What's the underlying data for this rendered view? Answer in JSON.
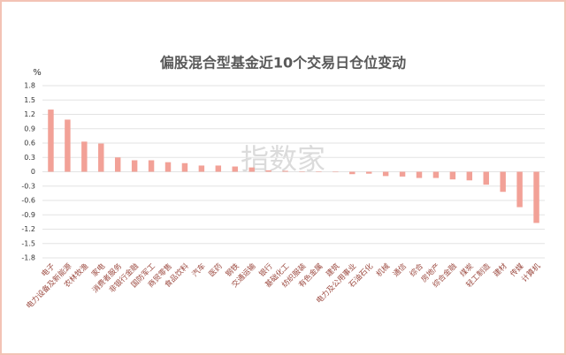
{
  "chart_data": {
    "type": "bar",
    "title": "偏股混合型基金近10个交易日仓位变动",
    "y_label": "%",
    "watermark": "指数家",
    "categories": [
      "电子",
      "电力设备及新能源",
      "农林牧渔",
      "家电",
      "消费者服务",
      "非银行金融",
      "国防军工",
      "商贸零售",
      "食品饮料",
      "汽车",
      "医药",
      "钢铁",
      "交通运输",
      "银行",
      "基础化工",
      "纺织服装",
      "有色金属",
      "建筑",
      "电力及公用事业",
      "石油石化",
      "机械",
      "通信",
      "综合",
      "房地产",
      "综合金融",
      "煤炭",
      "轻工制造",
      "建材",
      "传媒",
      "计算机"
    ],
    "values": [
      1.3,
      1.09,
      0.63,
      0.59,
      0.3,
      0.24,
      0.24,
      0.2,
      0.18,
      0.13,
      0.13,
      0.11,
      0.09,
      0.03,
      0.02,
      0.01,
      0.01,
      -0.01,
      -0.05,
      -0.04,
      -0.09,
      -0.1,
      -0.13,
      -0.13,
      -0.16,
      -0.18,
      -0.27,
      -0.42,
      -0.74,
      -1.07
    ],
    "color": "#f2a197",
    "ylim": [
      -1.8,
      1.8
    ],
    "yticks": [
      1.8,
      1.5,
      1.2,
      0.9,
      0.6,
      0.3,
      0,
      -0.3,
      -0.6,
      -0.9,
      -1.2,
      -1.5,
      -1.8
    ],
    "grid": true
  }
}
